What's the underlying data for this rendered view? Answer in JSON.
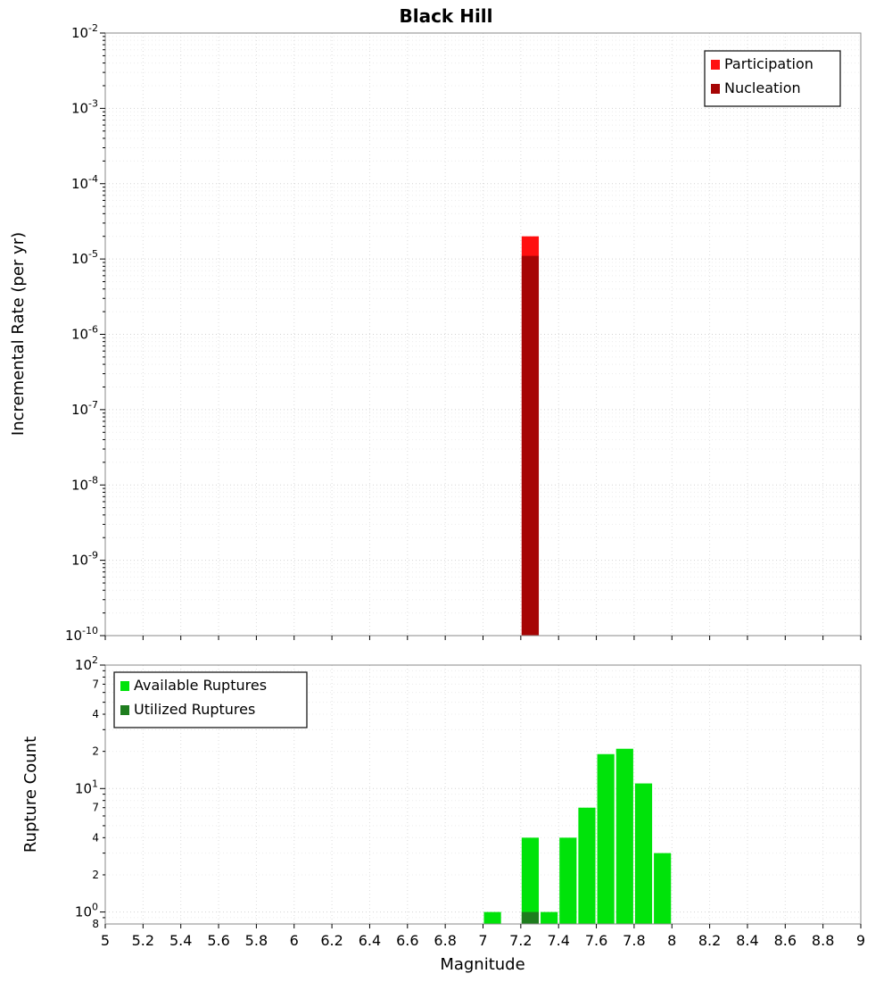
{
  "title": "Black Hill",
  "x_axis": {
    "label": "Magnitude",
    "min": 5,
    "max": 9,
    "ticks": [
      "5",
      "5.2",
      "5.4",
      "5.6",
      "5.8",
      "6",
      "6.2",
      "6.4",
      "6.6",
      "6.8",
      "7",
      "7.2",
      "7.4",
      "7.6",
      "7.8",
      "8",
      "8.2",
      "8.4",
      "8.6",
      "8.8",
      "9"
    ]
  },
  "chart_data": [
    {
      "type": "bar",
      "ylabel": "Incremental Rate (per yr)",
      "yscale": "log",
      "ylim": [
        1e-10,
        0.01
      ],
      "xlim": [
        5,
        9
      ],
      "legend_position": "top-right",
      "grid": true,
      "y_major_ticks": [
        -2,
        -3,
        -4,
        -5,
        -6,
        -7,
        -8,
        -9,
        -10
      ],
      "y_minor_labels": [],
      "series": [
        {
          "name": "Participation",
          "color": "#ff1010",
          "bars": [
            {
              "x": 7.25,
              "width": 0.1,
              "value": 2e-05
            }
          ]
        },
        {
          "name": "Nucleation",
          "color": "#a60505",
          "bars": [
            {
              "x": 7.25,
              "width": 0.1,
              "value": 1.1e-05
            }
          ]
        }
      ]
    },
    {
      "type": "bar",
      "ylabel": "Rupture Count",
      "yscale": "log",
      "ylim": [
        0.8,
        100
      ],
      "xlim": [
        5,
        9
      ],
      "legend_position": "top-left",
      "grid": true,
      "y_major_ticks": [
        2,
        1,
        0
      ],
      "y_minor_labels": [
        {
          "value": 70,
          "label": "7"
        },
        {
          "value": 40,
          "label": "4"
        },
        {
          "value": 20,
          "label": "2"
        },
        {
          "value": 7,
          "label": "7"
        },
        {
          "value": 4,
          "label": "4"
        },
        {
          "value": 2,
          "label": "2"
        },
        {
          "value": 0.8,
          "label": "8"
        }
      ],
      "series": [
        {
          "name": "Available Ruptures",
          "color": "#00e30a",
          "bars": [
            {
              "x": 7.05,
              "width": 0.1,
              "value": 1
            },
            {
              "x": 7.25,
              "width": 0.1,
              "value": 4
            },
            {
              "x": 7.35,
              "width": 0.1,
              "value": 1
            },
            {
              "x": 7.45,
              "width": 0.1,
              "value": 4
            },
            {
              "x": 7.55,
              "width": 0.1,
              "value": 7
            },
            {
              "x": 7.65,
              "width": 0.1,
              "value": 19
            },
            {
              "x": 7.75,
              "width": 0.1,
              "value": 21
            },
            {
              "x": 7.85,
              "width": 0.1,
              "value": 11
            },
            {
              "x": 7.95,
              "width": 0.1,
              "value": 3
            }
          ]
        },
        {
          "name": "Utilized Ruptures",
          "color": "#1e7d1e",
          "bars": [
            {
              "x": 7.25,
              "width": 0.1,
              "value": 1
            }
          ]
        }
      ]
    }
  ]
}
